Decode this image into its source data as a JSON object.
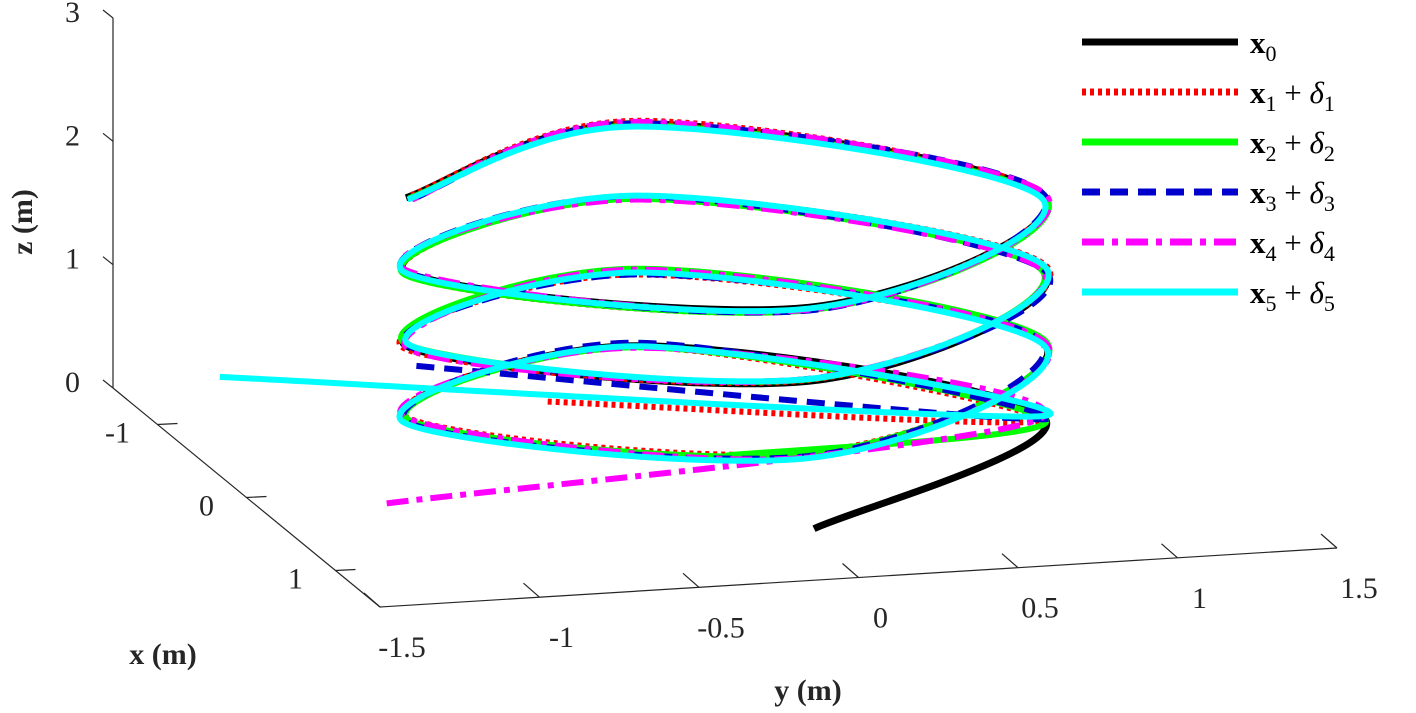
{
  "chart_data": {
    "type": "line",
    "projection": "3d",
    "xlabel": "x (m)",
    "ylabel": "y (m)",
    "zlabel": "z (m)",
    "xlim": [
      -1.5,
      1.5
    ],
    "ylim": [
      -1.5,
      1.5
    ],
    "zlim": [
      0,
      3
    ],
    "x_ticks": [
      "-1",
      "0",
      "1"
    ],
    "y_ticks": [
      "-1.5",
      "-1",
      "-0.5",
      "0",
      "0.5",
      "1",
      "1.5"
    ],
    "z_ticks": [
      "0",
      "1",
      "2",
      "3"
    ],
    "legend_position": "top-right",
    "series": [
      {
        "name_var": "x",
        "name_sub": "0",
        "name_delta": "",
        "delta_sub": "",
        "color": "#000000",
        "style": "solid",
        "x": [
          1.0,
          0.0,
          -1.0,
          0.0,
          1.0,
          0.0,
          -1.0,
          0.0,
          1.0,
          0.0,
          -1.0,
          0.0,
          1.0,
          0.0,
          -1.0,
          0.0
        ],
        "y": [
          0.0,
          1.0,
          0.0,
          -1.0,
          0.0,
          1.0,
          0.0,
          -1.0,
          0.0,
          1.0,
          0.0,
          -1.0,
          0.0,
          1.0,
          0.0,
          -1.0
        ],
        "z": [
          0.1,
          0.25,
          0.4,
          0.55,
          0.7,
          0.85,
          1.0,
          1.15,
          1.3,
          1.45,
          1.6,
          1.75,
          1.9,
          2.05,
          2.2,
          2.35
        ]
      },
      {
        "name_var": "x",
        "name_sub": "1",
        "name_delta": "δ",
        "delta_sub": "1",
        "color": "#ff0000",
        "style": "dotted",
        "start": {
          "x": -0.2,
          "y": -0.5,
          "z": 0.5
        }
      },
      {
        "name_var": "x",
        "name_sub": "2",
        "name_delta": "δ",
        "delta_sub": "2",
        "color": "#00ff00",
        "style": "solid",
        "start": {
          "x": 0.0,
          "y": 0.0,
          "z": 0.1
        }
      },
      {
        "name_var": "x",
        "name_sub": "3",
        "name_delta": "δ",
        "delta_sub": "3",
        "color": "#0000cc",
        "style": "dashed",
        "start": {
          "x": -0.6,
          "y": -0.8,
          "z": 0.6
        }
      },
      {
        "name_var": "x",
        "name_sub": "4",
        "name_delta": "δ",
        "delta_sub": "4",
        "color": "#ff00ff",
        "style": "dashdot",
        "start": {
          "x": 0.5,
          "y": -1.2,
          "z": 0.2
        }
      },
      {
        "name_var": "x",
        "name_sub": "5",
        "name_delta": "δ",
        "delta_sub": "5",
        "color": "#00ffff",
        "style": "solid",
        "start": {
          "x": -0.3,
          "y": -1.5,
          "z": 0.8
        }
      }
    ]
  }
}
